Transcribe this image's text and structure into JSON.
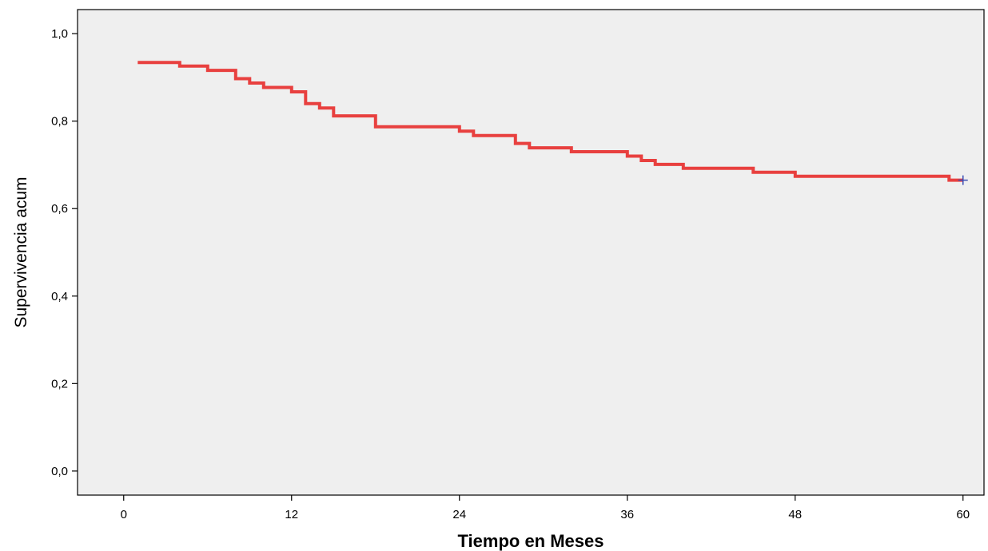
{
  "chart_data": {
    "type": "line",
    "title": "",
    "xlabel": "Tiempo en Meses",
    "ylabel": "Supervivencia acum",
    "xlim": [
      -3.3,
      61.5
    ],
    "ylim": [
      -0.055,
      1.055
    ],
    "x_ticks": [
      0,
      12,
      24,
      36,
      48,
      60
    ],
    "x_tick_labels": [
      "0",
      "12",
      "24",
      "36",
      "48",
      "60"
    ],
    "y_ticks": [
      0.0,
      0.2,
      0.4,
      0.6,
      0.8,
      1.0
    ],
    "y_tick_labels": [
      "0,0",
      "0,2",
      "0,4",
      "0,6",
      "0,8",
      "1,0"
    ],
    "grid": false,
    "series": [
      {
        "color": "#e8403f",
        "step": true,
        "x": [
          1,
          4,
          6,
          8,
          9,
          10,
          12,
          13,
          14,
          15,
          18,
          24,
          25,
          28,
          29,
          32,
          36,
          37,
          38,
          40,
          42,
          45,
          48,
          59,
          60
        ],
        "y": [
          0.934,
          0.926,
          0.916,
          0.897,
          0.887,
          0.877,
          0.867,
          0.84,
          0.83,
          0.812,
          0.787,
          0.777,
          0.767,
          0.749,
          0.739,
          0.73,
          0.72,
          0.71,
          0.701,
          0.692,
          0.692,
          0.683,
          0.674,
          0.665,
          0.665
        ]
      }
    ],
    "censor_marks": [
      {
        "x": 60,
        "y": 0.665,
        "marker": "+",
        "color": "#3a4db5"
      }
    ]
  }
}
